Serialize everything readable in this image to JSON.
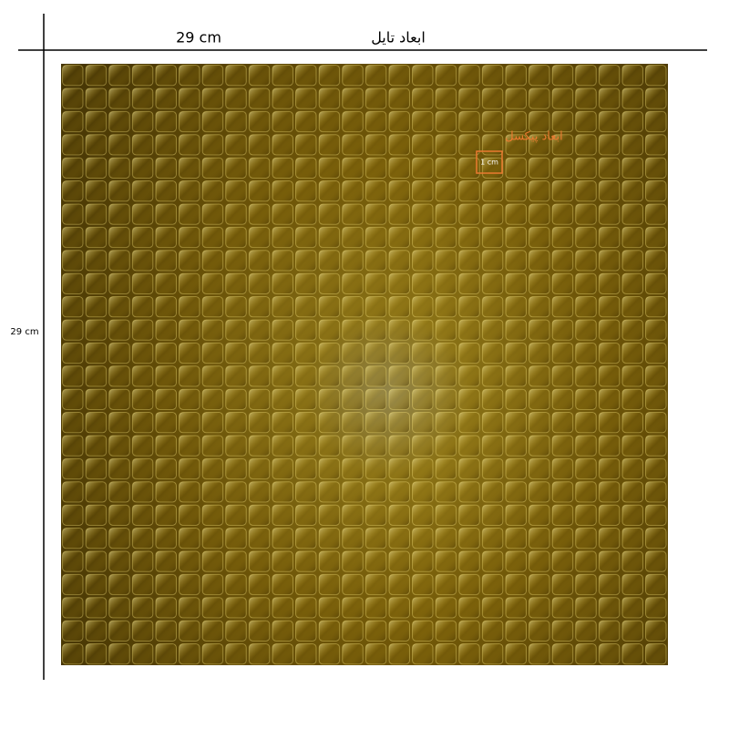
{
  "header": {
    "width_label": "29 cm",
    "title": "ابعاد تایل"
  },
  "side": {
    "height_label": "29 cm"
  },
  "pixel": {
    "title": "ابعاد پیکسل",
    "size_label": "1 cm"
  }
}
